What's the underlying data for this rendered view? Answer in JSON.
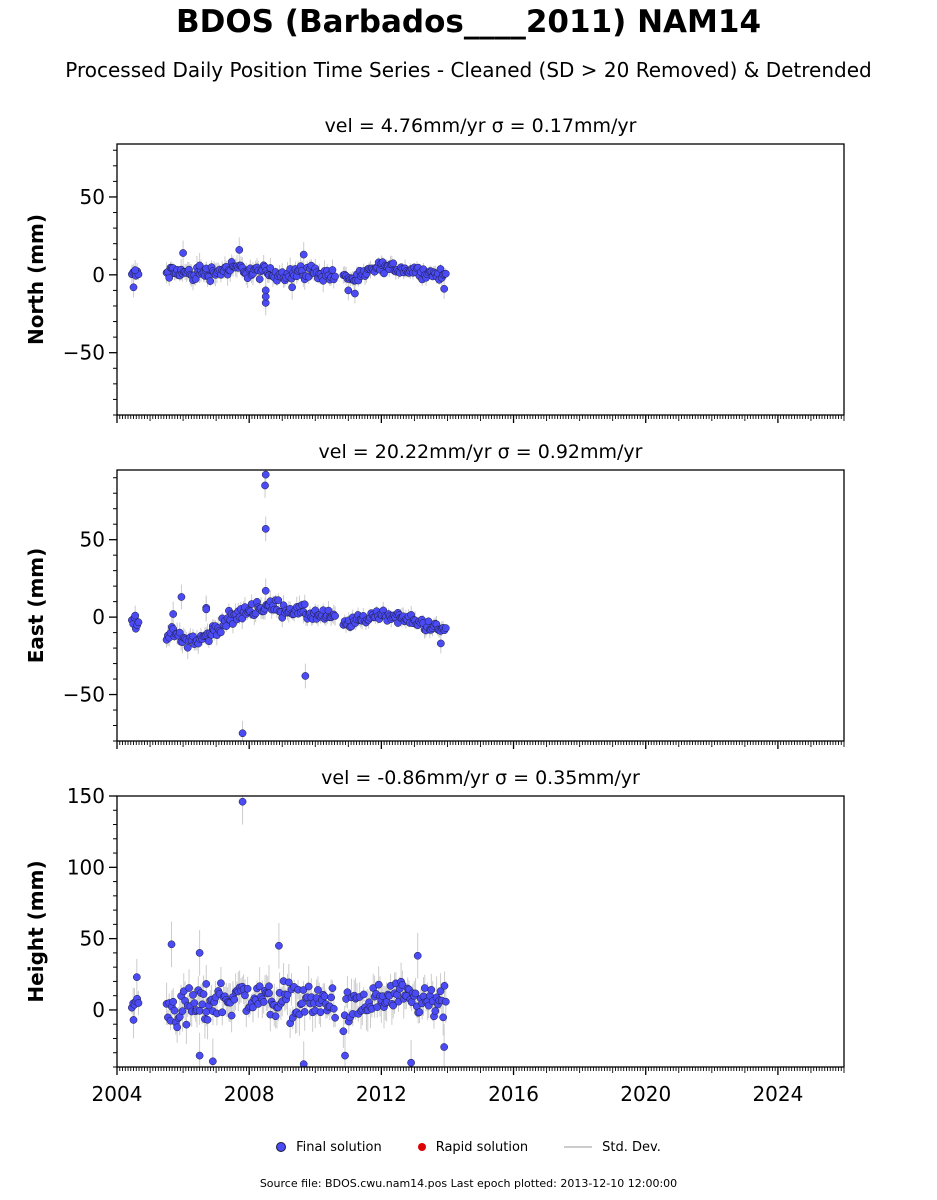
{
  "title": "BDOS (Barbados____2011) NAM14",
  "subtitle": "Processed Daily Position Time Series - Cleaned (SD > 20 Removed) & Detrended",
  "legend": {
    "final": "Final solution",
    "rapid": "Rapid solution",
    "stddev": "Std. Dev."
  },
  "footer": "Source file: BDOS.cwu.nam14.pos  Last epoch plotted: 2013-12-10 12:00:00",
  "colors": {
    "final": "#4b4bf5",
    "rapid": "#dd0000",
    "stddev": "#cccccc",
    "marker_edge": "#1a1a3a"
  },
  "chart_data": [
    {
      "type": "scatter",
      "title": "vel = 4.76mm/yr   σ = 0.17mm/yr",
      "ylabel": "North (mm)",
      "xlim": [
        2004.0,
        2026.0
      ],
      "ylim": [
        -90,
        84
      ],
      "yticks": [
        -50,
        0,
        50
      ],
      "xticks": [
        2004,
        2008,
        2012,
        2016,
        2020,
        2024
      ],
      "show_xticklabels": false,
      "segments": [
        {
          "x0": 2004.45,
          "x1": 2004.65,
          "points": [
            [
              2004.45,
              0
            ],
            [
              2004.5,
              2
            ],
            [
              2004.55,
              -2
            ],
            [
              2004.6,
              1
            ]
          ],
          "spread": 3,
          "err": 4,
          "outliers": [
            [
              2004.5,
              -8
            ],
            [
              2004.55,
              3
            ]
          ]
        },
        {
          "x0": 2005.5,
          "x1": 2006.7,
          "points": [
            [
              2005.5,
              1
            ],
            [
              2005.9,
              2
            ],
            [
              2006.3,
              0
            ],
            [
              2006.7,
              2
            ]
          ],
          "spread": 4,
          "err": 5,
          "outliers": [
            [
              2006.0,
              14
            ],
            [
              2006.5,
              6
            ]
          ]
        },
        {
          "x0": 2006.7,
          "x1": 2008.6,
          "points": [
            [
              2006.7,
              1
            ],
            [
              2007.2,
              3
            ],
            [
              2007.7,
              4
            ],
            [
              2008.1,
              2
            ],
            [
              2008.6,
              1
            ]
          ],
          "spread": 4,
          "err": 5,
          "outliers": [
            [
              2007.7,
              16
            ],
            [
              2008.5,
              -18
            ],
            [
              2008.5,
              -14
            ],
            [
              2008.5,
              -10
            ]
          ]
        },
        {
          "x0": 2008.6,
          "x1": 2010.6,
          "points": [
            [
              2008.6,
              0
            ],
            [
              2009.2,
              1
            ],
            [
              2009.7,
              2
            ],
            [
              2010.2,
              1
            ],
            [
              2010.6,
              -1
            ]
          ],
          "spread": 4,
          "err": 5,
          "outliers": [
            [
              2009.65,
              13
            ],
            [
              2009.3,
              -8
            ]
          ]
        },
        {
          "x0": 2010.85,
          "x1": 2012.0,
          "points": [
            [
              2010.85,
              -1
            ],
            [
              2011.3,
              -3
            ],
            [
              2011.7,
              3
            ],
            [
              2012.0,
              5
            ]
          ],
          "spread": 3,
          "err": 4,
          "outliers": [
            [
              2011.0,
              -10
            ],
            [
              2011.2,
              -12
            ]
          ]
        },
        {
          "x0": 2012.0,
          "x1": 2013.95,
          "points": [
            [
              2012.0,
              5
            ],
            [
              2012.6,
              4
            ],
            [
              2013.2,
              2
            ],
            [
              2013.95,
              -1
            ]
          ],
          "spread": 3,
          "err": 4,
          "outliers": [
            [
              2013.9,
              -9
            ]
          ]
        }
      ]
    },
    {
      "type": "scatter",
      "title": "vel = 20.22mm/yr   σ = 0.92mm/yr",
      "ylabel": "East (mm)",
      "xlim": [
        2004.0,
        2026.0
      ],
      "ylim": [
        -80,
        95
      ],
      "yticks": [
        -50,
        0,
        50
      ],
      "xticks": [
        2004,
        2008,
        2012,
        2016,
        2020,
        2024
      ],
      "show_xticklabels": false,
      "segments": [
        {
          "x0": 2004.45,
          "x1": 2004.65,
          "points": [
            [
              2004.45,
              -2
            ],
            [
              2004.55,
              -3
            ],
            [
              2004.65,
              -4
            ]
          ],
          "spread": 3,
          "err": 4,
          "outliers": [
            [
              2004.55,
              1
            ]
          ]
        },
        {
          "x0": 2005.5,
          "x1": 2006.9,
          "points": [
            [
              2005.5,
              -10
            ],
            [
              2006.0,
              -14
            ],
            [
              2006.5,
              -15
            ],
            [
              2006.9,
              -10
            ]
          ],
          "spread": 4,
          "err": 5,
          "outliers": [
            [
              2005.95,
              13
            ],
            [
              2005.7,
              2
            ],
            [
              2006.7,
              6
            ],
            [
              2006.7,
              5
            ]
          ]
        },
        {
          "x0": 2006.9,
          "x1": 2008.6,
          "points": [
            [
              2006.9,
              -8
            ],
            [
              2007.4,
              -2
            ],
            [
              2008.0,
              5
            ],
            [
              2008.6,
              7
            ]
          ],
          "spread": 4,
          "err": 5,
          "outliers": [
            [
              2007.8,
              -75
            ],
            [
              2008.5,
              92
            ],
            [
              2008.48,
              85
            ],
            [
              2008.5,
              57
            ],
            [
              2008.5,
              17
            ]
          ]
        },
        {
          "x0": 2008.6,
          "x1": 2010.6,
          "points": [
            [
              2008.6,
              7
            ],
            [
              2009.2,
              5
            ],
            [
              2009.8,
              2
            ],
            [
              2010.6,
              -1
            ]
          ],
          "spread": 4,
          "err": 5,
          "outliers": [
            [
              2009.7,
              -38
            ]
          ]
        },
        {
          "x0": 2010.85,
          "x1": 2012.5,
          "points": [
            [
              2010.85,
              -5
            ],
            [
              2011.5,
              -1
            ],
            [
              2012.0,
              2
            ],
            [
              2012.5,
              0
            ]
          ],
          "spread": 3,
          "err": 4,
          "outliers": []
        },
        {
          "x0": 2012.5,
          "x1": 2013.95,
          "points": [
            [
              2012.5,
              0
            ],
            [
              2013.2,
              -4
            ],
            [
              2013.95,
              -9
            ]
          ],
          "spread": 3,
          "err": 4,
          "outliers": [
            [
              2013.8,
              -17
            ]
          ]
        }
      ]
    },
    {
      "type": "scatter",
      "title": "vel = -0.86mm/yr   σ = 0.35mm/yr",
      "ylabel": "Height (mm)",
      "xlim": [
        2004.0,
        2026.0
      ],
      "ylim": [
        -40,
        150
      ],
      "yticks": [
        0,
        50,
        100,
        150
      ],
      "xticks": [
        2004,
        2008,
        2012,
        2016,
        2020,
        2024
      ],
      "show_xticklabels": true,
      "segments": [
        {
          "x0": 2004.45,
          "x1": 2004.65,
          "points": [
            [
              2004.45,
              5
            ],
            [
              2004.65,
              5
            ]
          ],
          "spread": 8,
          "err": 8,
          "outliers": [
            [
              2004.6,
              23
            ],
            [
              2004.5,
              -7
            ]
          ]
        },
        {
          "x0": 2005.5,
          "x1": 2006.7,
          "points": [
            [
              2005.5,
              0
            ],
            [
              2006.1,
              2
            ],
            [
              2006.7,
              3
            ]
          ],
          "spread": 12,
          "err": 10,
          "outliers": [
            [
              2005.65,
              46
            ],
            [
              2006.5,
              40
            ],
            [
              2006.5,
              -32
            ],
            [
              2006.9,
              -36
            ]
          ]
        },
        {
          "x0": 2006.7,
          "x1": 2008.6,
          "points": [
            [
              2006.7,
              5
            ],
            [
              2007.5,
              10
            ],
            [
              2008.6,
              8
            ]
          ],
          "spread": 11,
          "err": 10,
          "outliers": [
            [
              2007.8,
              146
            ],
            [
              2008.9,
              45
            ],
            [
              2009.65,
              -38
            ]
          ]
        },
        {
          "x0": 2008.6,
          "x1": 2010.6,
          "points": [
            [
              2008.6,
              8
            ],
            [
              2009.6,
              6
            ],
            [
              2010.6,
              4
            ]
          ],
          "spread": 11,
          "err": 10,
          "outliers": []
        },
        {
          "x0": 2010.85,
          "x1": 2012.0,
          "points": [
            [
              2010.85,
              -3
            ],
            [
              2011.5,
              3
            ],
            [
              2012.0,
              8
            ]
          ],
          "spread": 11,
          "err": 10,
          "outliers": [
            [
              2010.9,
              -32
            ]
          ]
        },
        {
          "x0": 2012.0,
          "x1": 2013.95,
          "points": [
            [
              2012.0,
              8
            ],
            [
              2013.0,
              6
            ],
            [
              2013.95,
              3
            ]
          ],
          "spread": 10,
          "err": 10,
          "outliers": [
            [
              2012.9,
              -37
            ],
            [
              2013.1,
              38
            ],
            [
              2013.9,
              -26
            ]
          ]
        }
      ]
    }
  ]
}
